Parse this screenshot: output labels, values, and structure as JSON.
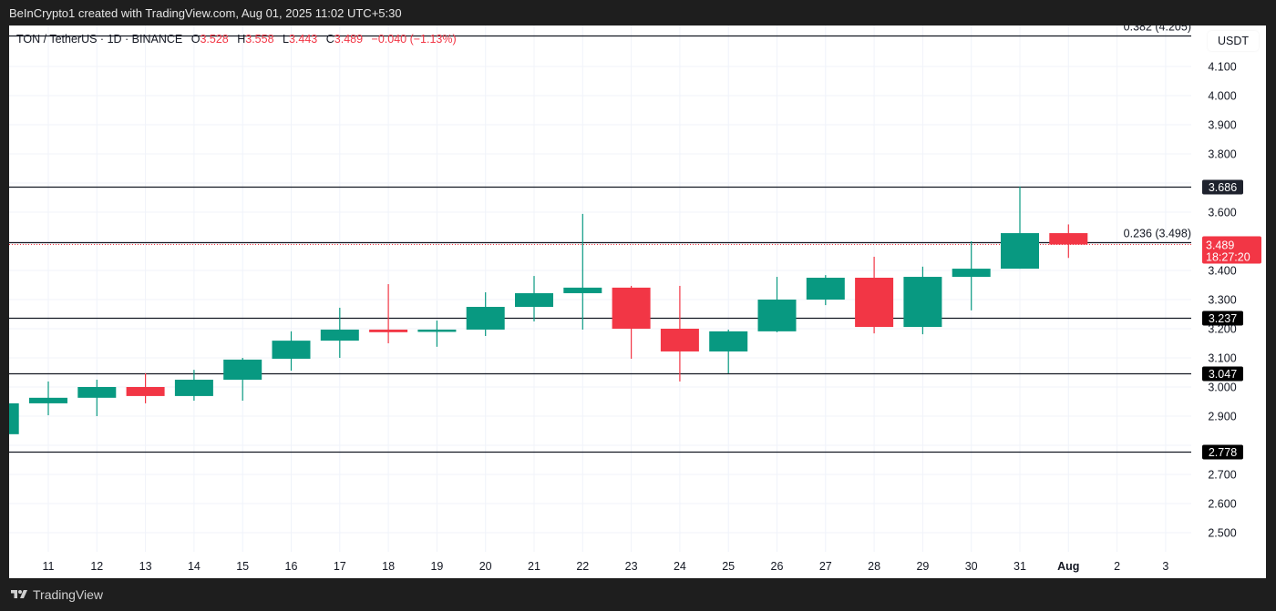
{
  "header": {
    "attribution": "BeInCrypto1 created with TradingView.com, Aug 01, 2025 11:02 UTC+5:30"
  },
  "legend": {
    "symbol": "TON / TetherUS · 1D · BINANCE",
    "open_label": "O",
    "open": "3.528",
    "high_label": "H",
    "high": "3.558",
    "low_label": "L",
    "low": "3.443",
    "close_label": "C",
    "close": "3.489",
    "change": "−0.040 (−1.13%)"
  },
  "axis": {
    "currency": "USDT"
  },
  "footer": {
    "brand": "TradingView"
  },
  "colors": {
    "up": "#089981",
    "down": "#f23645",
    "grid": "#f0f3fa",
    "level_line": "#131722",
    "label_bg": "#000000",
    "label_bg_dark": "#1e222d"
  },
  "chart_data": {
    "type": "candlestick",
    "title": "TON / TetherUS · 1D · BINANCE",
    "xlabel": "",
    "ylabel": "USDT",
    "ylim": [
      2.41,
      4.205
    ],
    "grid": true,
    "y_ticks": [
      "4.100",
      "4.000",
      "3.900",
      "3.800",
      "3.600",
      "3.400",
      "3.300",
      "3.200",
      "3.100",
      "3.000",
      "2.900",
      "2.700",
      "2.600",
      "2.500"
    ],
    "x_ticks": [
      "11",
      "12",
      "13",
      "14",
      "15",
      "16",
      "17",
      "18",
      "19",
      "20",
      "21",
      "22",
      "23",
      "24",
      "25",
      "26",
      "27",
      "28",
      "29",
      "30",
      "31",
      "Aug",
      "2",
      "3"
    ],
    "candles": [
      {
        "date": "10",
        "o": 2.838,
        "h": 2.944,
        "l": 2.838,
        "c": 2.944
      },
      {
        "date": "11",
        "o": 2.944,
        "h": 3.019,
        "l": 2.903,
        "c": 2.963
      },
      {
        "date": "12",
        "o": 2.963,
        "h": 3.025,
        "l": 2.9,
        "c": 3.0
      },
      {
        "date": "13",
        "o": 3.0,
        "h": 3.047,
        "l": 2.944,
        "c": 2.969
      },
      {
        "date": "14",
        "o": 2.969,
        "h": 3.059,
        "l": 2.953,
        "c": 3.025
      },
      {
        "date": "15",
        "o": 3.025,
        "h": 3.1,
        "l": 2.953,
        "c": 3.094
      },
      {
        "date": "16",
        "o": 3.097,
        "h": 3.191,
        "l": 3.056,
        "c": 3.159
      },
      {
        "date": "17",
        "o": 3.159,
        "h": 3.272,
        "l": 3.1,
        "c": 3.197
      },
      {
        "date": "18",
        "o": 3.197,
        "h": 3.353,
        "l": 3.15,
        "c": 3.188
      },
      {
        "date": "19",
        "o": 3.191,
        "h": 3.228,
        "l": 3.138,
        "c": 3.197
      },
      {
        "date": "20",
        "o": 3.197,
        "h": 3.325,
        "l": 3.175,
        "c": 3.275
      },
      {
        "date": "21",
        "o": 3.275,
        "h": 3.381,
        "l": 3.225,
        "c": 3.322
      },
      {
        "date": "22",
        "o": 3.322,
        "h": 3.594,
        "l": 3.197,
        "c": 3.341
      },
      {
        "date": "23",
        "o": 3.341,
        "h": 3.347,
        "l": 3.097,
        "c": 3.2
      },
      {
        "date": "24",
        "o": 3.2,
        "h": 3.347,
        "l": 3.019,
        "c": 3.122
      },
      {
        "date": "25",
        "o": 3.122,
        "h": 3.197,
        "l": 3.047,
        "c": 3.191
      },
      {
        "date": "26",
        "o": 3.191,
        "h": 3.378,
        "l": 3.188,
        "c": 3.3
      },
      {
        "date": "27",
        "o": 3.3,
        "h": 3.384,
        "l": 3.281,
        "c": 3.375
      },
      {
        "date": "28",
        "o": 3.375,
        "h": 3.447,
        "l": 3.184,
        "c": 3.206
      },
      {
        "date": "29",
        "o": 3.206,
        "h": 3.413,
        "l": 3.181,
        "c": 3.378
      },
      {
        "date": "30",
        "o": 3.378,
        "h": 3.5,
        "l": 3.263,
        "c": 3.406
      },
      {
        "date": "31",
        "o": 3.406,
        "h": 3.688,
        "l": 3.406,
        "c": 3.528
      },
      {
        "date": "Aug 1",
        "o": 3.528,
        "h": 3.558,
        "l": 3.443,
        "c": 3.489
      }
    ],
    "horizontal_levels": [
      {
        "price": 4.205,
        "label": "0.382 (4.205)",
        "type": "fib"
      },
      {
        "price": 3.686,
        "label": "3.686",
        "type": "level"
      },
      {
        "price": 3.498,
        "label": "0.236 (3.498)",
        "type": "fib"
      },
      {
        "price": 3.237,
        "label": "3.237",
        "type": "level"
      },
      {
        "price": 3.047,
        "label": "3.047",
        "type": "level"
      },
      {
        "price": 2.778,
        "label": "2.778",
        "type": "level"
      }
    ],
    "last_price": {
      "value": "3.489",
      "countdown": "18:27:20"
    }
  }
}
